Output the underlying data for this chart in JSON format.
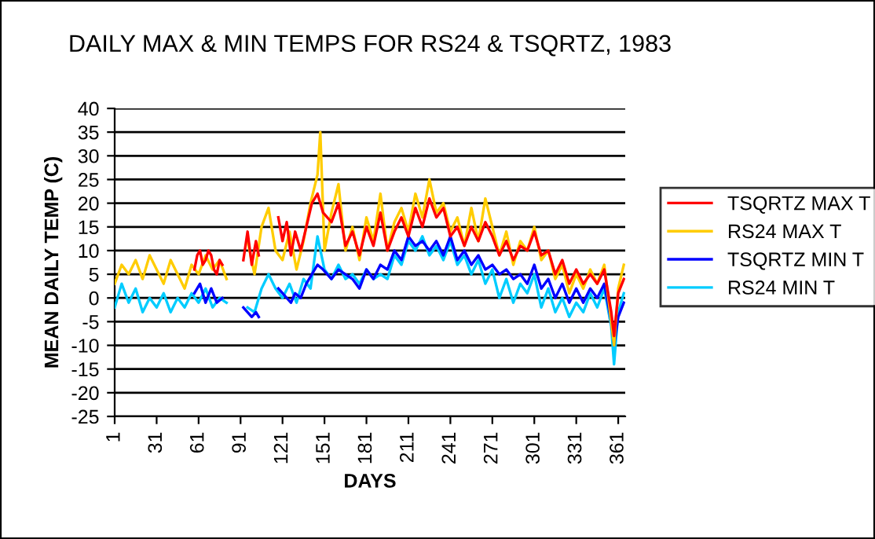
{
  "chart_data": {
    "type": "line",
    "title": "DAILY MAX & MIN TEMPS FOR RS24 & TSQRTZ, 1983",
    "xlabel": "DAYS",
    "ylabel": "MEAN DAILY TEMP (C)",
    "xlim": [
      1,
      366
    ],
    "xticks": [
      1,
      31,
      61,
      91,
      121,
      151,
      181,
      211,
      241,
      271,
      301,
      331,
      361
    ],
    "ylim": [
      -25,
      40
    ],
    "yticks": [
      -25,
      -20,
      -15,
      -10,
      -5,
      0,
      5,
      10,
      15,
      20,
      25,
      30,
      35,
      40
    ],
    "grid": "y",
    "legend": "right",
    "marker": "none",
    "line_style": "solid",
    "series": [
      {
        "name": "TSQRTZ MAX T",
        "color": "#ff0000",
        "x": [
          58,
          60,
          62,
          64,
          66,
          68,
          70,
          72,
          74,
          76,
          78,
          82,
          93,
          96,
          99,
          102,
          104,
          110,
          118,
          121,
          124,
          127,
          130,
          134,
          138,
          142,
          146,
          150,
          156,
          161,
          166,
          171,
          176,
          181,
          186,
          191,
          196,
          201,
          206,
          211,
          216,
          221,
          226,
          231,
          236,
          241,
          246,
          251,
          256,
          261,
          266,
          271,
          276,
          281,
          286,
          291,
          296,
          301,
          306,
          311,
          316,
          321,
          326,
          331,
          336,
          341,
          346,
          351,
          356,
          358,
          361,
          365
        ],
        "values": [
          6,
          9,
          10,
          7,
          8,
          10,
          9,
          6,
          5,
          8,
          7,
          null,
          8,
          14,
          7,
          12,
          9,
          null,
          17,
          12,
          16,
          9,
          14,
          10,
          15,
          20,
          22,
          18,
          16,
          20,
          11,
          14,
          9,
          15,
          11,
          18,
          10,
          14,
          17,
          13,
          19,
          15,
          21,
          17,
          19,
          13,
          15,
          11,
          15,
          12,
          16,
          13,
          9,
          12,
          8,
          11,
          10,
          14,
          9,
          10,
          5,
          8,
          3,
          6,
          3,
          5,
          3,
          6,
          -3,
          -8,
          1,
          4
        ]
      },
      {
        "name": "RS24 MAX T",
        "color": "#ffcc00",
        "x": [
          1,
          6,
          11,
          16,
          21,
          26,
          31,
          36,
          41,
          46,
          51,
          56,
          61,
          66,
          71,
          76,
          81,
          86,
          96,
          101,
          106,
          111,
          116,
          121,
          126,
          131,
          136,
          141,
          146,
          148,
          151,
          156,
          161,
          166,
          171,
          176,
          181,
          186,
          191,
          196,
          201,
          206,
          211,
          216,
          221,
          226,
          231,
          236,
          241,
          246,
          251,
          256,
          261,
          266,
          271,
          276,
          281,
          286,
          291,
          296,
          301,
          306,
          311,
          316,
          321,
          326,
          331,
          336,
          341,
          346,
          351,
          356,
          358,
          361,
          365
        ],
        "values": [
          3,
          7,
          5,
          8,
          4,
          9,
          6,
          3,
          8,
          5,
          2,
          7,
          5,
          9,
          6,
          8,
          4,
          null,
          12,
          5,
          15,
          19,
          10,
          8,
          14,
          6,
          12,
          20,
          26,
          35,
          10,
          18,
          24,
          10,
          15,
          8,
          17,
          12,
          22,
          10,
          16,
          19,
          14,
          22,
          17,
          25,
          18,
          20,
          14,
          17,
          11,
          19,
          12,
          21,
          15,
          9,
          14,
          7,
          12,
          10,
          15,
          8,
          10,
          4,
          7,
          1,
          5,
          2,
          6,
          3,
          7,
          -5,
          -10,
          2,
          7
        ]
      },
      {
        "name": "TSQRTZ MIN T",
        "color": "#0000ff",
        "x": [
          58,
          62,
          66,
          70,
          74,
          78,
          82,
          93,
          96,
          99,
          102,
          104,
          110,
          118,
          121,
          124,
          127,
          130,
          134,
          138,
          142,
          146,
          150,
          156,
          161,
          166,
          171,
          176,
          181,
          186,
          191,
          196,
          201,
          206,
          211,
          216,
          221,
          226,
          231,
          236,
          241,
          246,
          251,
          256,
          261,
          266,
          271,
          276,
          281,
          286,
          291,
          296,
          301,
          306,
          311,
          316,
          321,
          326,
          331,
          336,
          341,
          346,
          351,
          356,
          358,
          361,
          365
        ],
        "values": [
          1,
          3,
          -1,
          2,
          -1,
          0,
          null,
          -2,
          -3,
          -4,
          -3,
          -4,
          null,
          2,
          1,
          0,
          -1,
          1,
          0,
          3,
          5,
          7,
          6,
          4,
          6,
          5,
          4,
          2,
          6,
          4,
          7,
          6,
          10,
          8,
          13,
          11,
          12,
          10,
          12,
          9,
          13,
          8,
          10,
          7,
          9,
          6,
          7,
          5,
          6,
          4,
          5,
          3,
          7,
          2,
          4,
          0,
          3,
          -1,
          2,
          -1,
          2,
          0,
          3,
          -5,
          -10,
          -4,
          -1
        ]
      },
      {
        "name": "RS24 MIN T",
        "color": "#00ccff",
        "x": [
          1,
          6,
          11,
          16,
          21,
          26,
          31,
          36,
          41,
          46,
          51,
          56,
          61,
          66,
          71,
          76,
          81,
          86,
          96,
          101,
          106,
          111,
          116,
          121,
          126,
          131,
          136,
          141,
          146,
          151,
          156,
          161,
          166,
          171,
          176,
          181,
          186,
          191,
          196,
          201,
          206,
          211,
          216,
          221,
          226,
          231,
          236,
          241,
          246,
          251,
          256,
          261,
          266,
          271,
          276,
          281,
          286,
          291,
          296,
          301,
          306,
          311,
          316,
          321,
          326,
          331,
          336,
          341,
          346,
          351,
          356,
          358,
          361,
          365
        ],
        "values": [
          -2,
          3,
          -1,
          2,
          -3,
          0,
          -2,
          1,
          -3,
          0,
          -2,
          1,
          -1,
          2,
          -2,
          0,
          -1,
          null,
          -2,
          -3,
          2,
          5,
          2,
          0,
          3,
          -1,
          4,
          2,
          13,
          6,
          4,
          7,
          4,
          5,
          3,
          6,
          4,
          5,
          4,
          9,
          7,
          12,
          10,
          13,
          9,
          11,
          8,
          12,
          7,
          9,
          5,
          8,
          3,
          6,
          0,
          4,
          -1,
          3,
          1,
          5,
          -2,
          2,
          -3,
          0,
          -4,
          -1,
          -3,
          1,
          -2,
          2,
          -6,
          -14,
          -3,
          1
        ]
      }
    ]
  }
}
